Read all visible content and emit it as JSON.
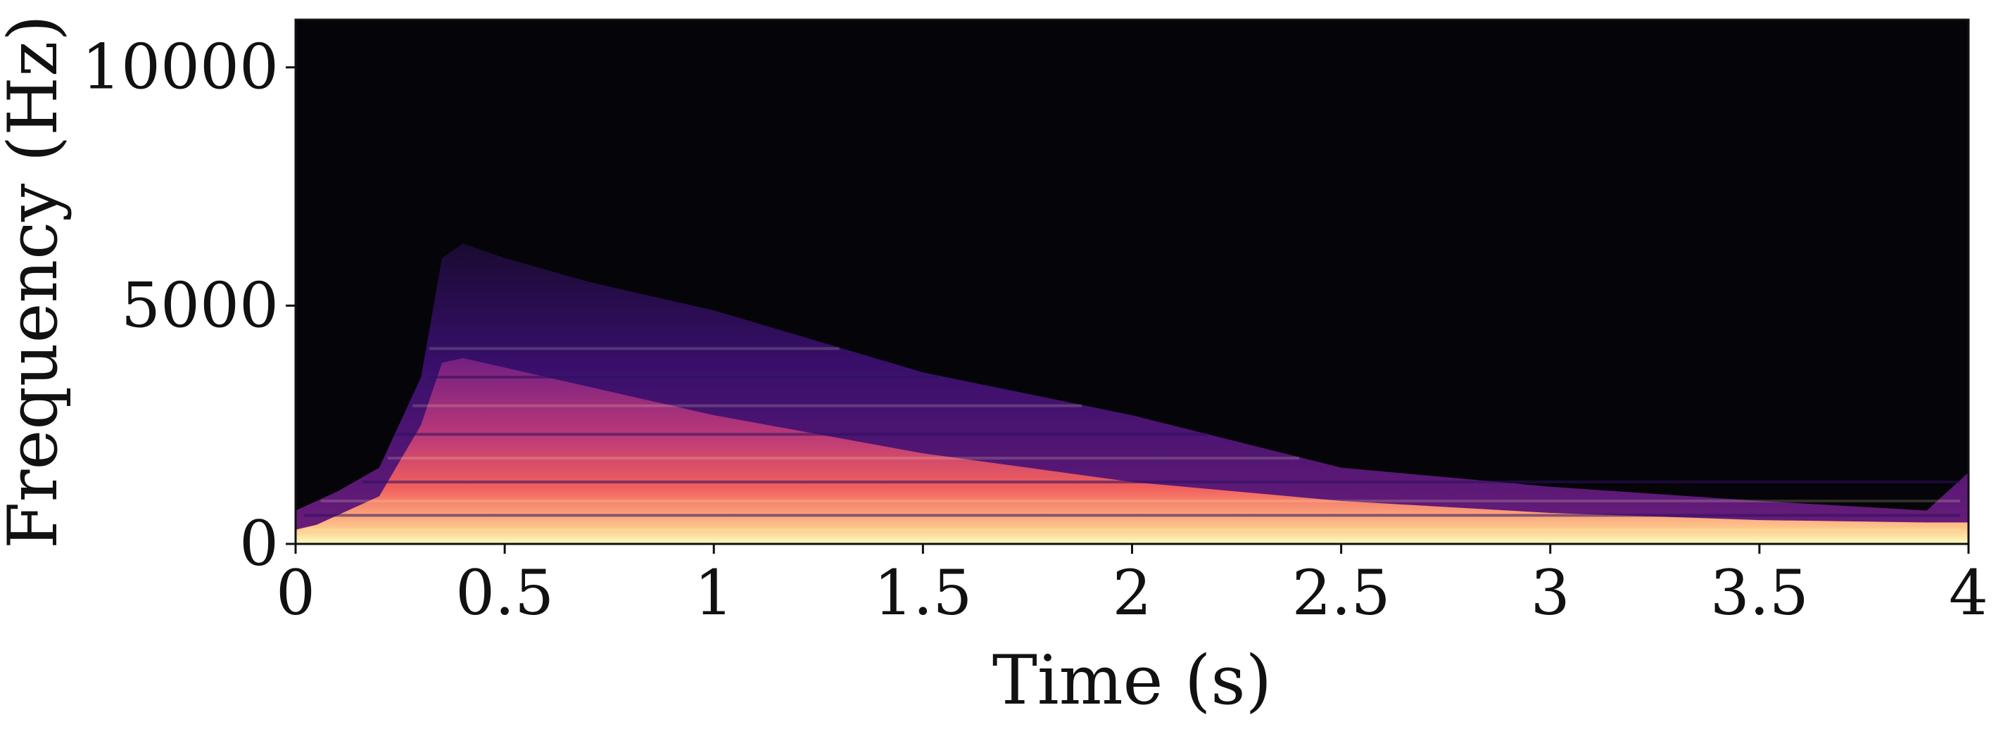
{
  "chart_data": {
    "type": "heatmap",
    "subtype": "spectrogram",
    "title": "",
    "xlabel": "Time (s)",
    "ylabel": "Frequency (Hz)",
    "xlim": [
      0,
      4
    ],
    "ylim": [
      0,
      11000
    ],
    "x_ticks": [
      0,
      0.5,
      1,
      1.5,
      2,
      2.5,
      3,
      3.5,
      4
    ],
    "x_tick_labels": [
      "0",
      "0.5",
      "1",
      "1.5",
      "2",
      "2.5",
      "3",
      "3.5",
      "4"
    ],
    "y_ticks": [
      0,
      5000,
      10000
    ],
    "y_tick_labels": [
      "0",
      "5000",
      "10000"
    ],
    "colormap": "magma",
    "background_color": "#050409",
    "grid": false,
    "legend": "none",
    "energy_envelope": {
      "description_units": "time in s, frequency in Hz",
      "time": [
        0.0,
        0.05,
        0.1,
        0.2,
        0.3,
        0.35,
        0.4,
        0.5,
        0.7,
        1.0,
        1.5,
        2.0,
        2.5,
        3.0,
        3.5,
        3.9,
        4.0
      ],
      "upper_frequency": [
        700,
        900,
        1100,
        1600,
        3500,
        6000,
        6300,
        6000,
        5500,
        4900,
        3600,
        2700,
        1600,
        1200,
        900,
        700,
        1500
      ],
      "bright_band_frequency": [
        300,
        400,
        600,
        1000,
        2500,
        3800,
        3900,
        3700,
        3300,
        2700,
        1900,
        1300,
        900,
        650,
        500,
        450,
        450
      ]
    }
  }
}
